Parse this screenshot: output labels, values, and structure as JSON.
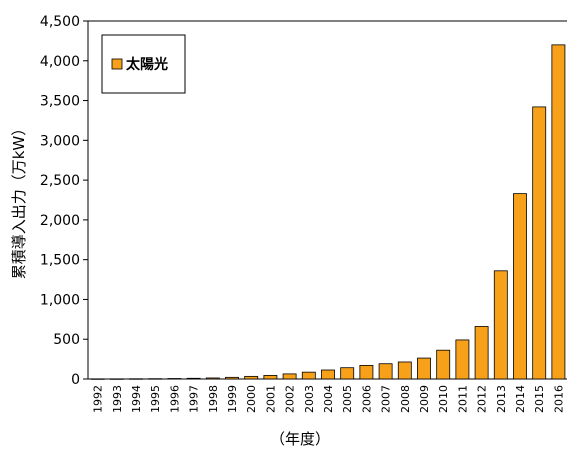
{
  "chart_data": {
    "type": "bar",
    "categories": [
      "1992",
      "1993",
      "1994",
      "1995",
      "1996",
      "1997",
      "1998",
      "1999",
      "2000",
      "2001",
      "2002",
      "2003",
      "2004",
      "2005",
      "2006",
      "2007",
      "2008",
      "2009",
      "2010",
      "2011",
      "2012",
      "2013",
      "2014",
      "2015",
      "2016"
    ],
    "series": [
      {
        "name": "太陽光",
        "color": "#f7a11a",
        "values": [
          2,
          2,
          3,
          4,
          6,
          9,
          13,
          21,
          33,
          45,
          64,
          86,
          113,
          142,
          171,
          192,
          214,
          263,
          362,
          491,
          660,
          1360,
          2330,
          3420,
          4200
        ]
      }
    ],
    "title": "",
    "xlabel": "（年度）",
    "ylabel": "累積導入出力（万kW）",
    "ylim": [
      0,
      4500
    ],
    "yticks": [
      0,
      500,
      1000,
      1500,
      2000,
      2500,
      3000,
      3500,
      4000,
      4500
    ],
    "ytick_labels": [
      "0",
      "500",
      "1,000",
      "1,500",
      "2,000",
      "2,500",
      "3,000",
      "3,500",
      "4,000",
      "4,500"
    ],
    "grid": false,
    "legend_position": "top-left"
  }
}
